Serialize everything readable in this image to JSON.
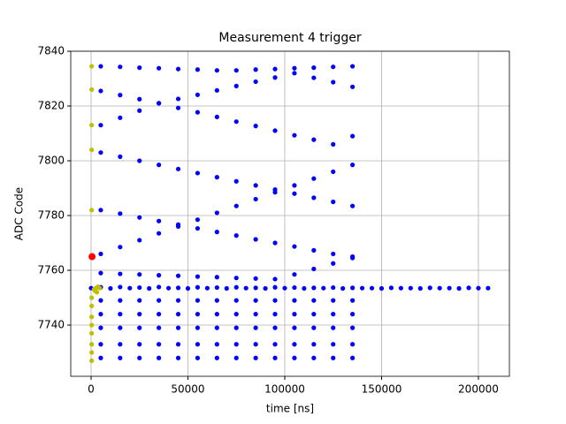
{
  "chart_data": {
    "type": "scatter",
    "title": "Measurement 4 trigger",
    "x_label": "time [ns]",
    "y_label": "ADC Code",
    "xlim": [
      -10500,
      216000
    ],
    "ylim": [
      7721.3,
      7840
    ],
    "xticks": [
      0,
      50000,
      100000,
      150000,
      200000
    ],
    "yticks": [
      7740,
      7760,
      7780,
      7800,
      7820,
      7840
    ],
    "grid": true,
    "series": [
      {
        "color": "#0000ff",
        "size": 2.6,
        "x": [
          0,
          5000,
          10000,
          15000,
          20000,
          25000,
          30000,
          35000,
          40000,
          45000,
          50000,
          55000,
          60000,
          65000,
          70000,
          75000,
          80000,
          85000,
          90000,
          95000,
          100000,
          105000,
          110000,
          115000,
          120000,
          125000,
          130000,
          135000,
          140000,
          145000,
          150000,
          155000,
          160000,
          165000,
          170000,
          175000,
          180000,
          185000,
          190000,
          195000,
          200000,
          205000
        ],
        "y": [
          7753.5,
          7753.8,
          7753.4,
          7753.9,
          7753.5,
          7753.7,
          7753.4,
          7753.9,
          7753.5,
          7753.6,
          7753.4,
          7753.8,
          7753.5,
          7753.7,
          7753.4,
          7753.8,
          7753.5,
          7753.6,
          7753.4,
          7753.8,
          7753.5,
          7753.7,
          7753.4,
          7753.6,
          7753.5,
          7753.7,
          7753.4,
          7753.6,
          7753.5,
          7753.5,
          7753.4,
          7753.6,
          7753.5,
          7753.5,
          7753.4,
          7753.6,
          7753.5,
          7753.5,
          7753.4,
          7753.6,
          7753.5,
          7753.5
        ]
      },
      {
        "color": "#0000ff",
        "size": 2.6,
        "x": [
          5000,
          15000,
          25000,
          35000,
          45000,
          55000,
          65000,
          75000,
          85000,
          95000,
          105000,
          115000,
          125000,
          135000
        ],
        "y": [
          7834.5,
          7834.3,
          7834,
          7833.8,
          7833.5,
          7833.3,
          7833,
          7833,
          7833.3,
          7833.5,
          7833.8,
          7834,
          7834.3,
          7834.5
        ]
      },
      {
        "color": "#0000ff",
        "size": 2.6,
        "x": [
          5000,
          15000,
          25000,
          35000,
          45000,
          55000,
          65000,
          75000,
          85000,
          95000,
          105000,
          115000,
          125000,
          135000
        ],
        "y": [
          7825.5,
          7824,
          7822.5,
          7821,
          7822.6,
          7824.1,
          7825.7,
          7827.3,
          7828.9,
          7830.4,
          7832,
          7830.3,
          7828.7,
          7827
        ]
      },
      {
        "color": "#0000ff",
        "size": 2.6,
        "x": [
          5000,
          15000,
          25000,
          35000,
          45000,
          55000,
          65000,
          75000,
          85000,
          95000,
          105000,
          115000,
          125000,
          135000
        ],
        "y": [
          7813,
          7815.7,
          7818.3,
          7821,
          7819.3,
          7817.7,
          7816,
          7814.3,
          7812.7,
          7811,
          7809.3,
          7807.7,
          7806,
          7809
        ]
      },
      {
        "color": "#0000ff",
        "size": 2.6,
        "x": [
          5000,
          15000,
          25000,
          35000,
          45000,
          55000,
          65000,
          75000,
          85000,
          95000,
          105000,
          115000,
          125000,
          135000
        ],
        "y": [
          7803,
          7801.5,
          7800,
          7798.5,
          7797,
          7795.5,
          7794,
          7792.5,
          7791,
          7789.5,
          7788,
          7786.5,
          7785,
          7783.5
        ]
      },
      {
        "color": "#0000ff",
        "size": 2.6,
        "x": [
          5000,
          15000,
          25000,
          35000,
          45000,
          55000,
          65000,
          75000,
          85000,
          95000,
          105000,
          115000,
          125000,
          135000
        ],
        "y": [
          7782,
          7780.7,
          7779.3,
          7778,
          7776.7,
          7775.3,
          7774,
          7772.7,
          7771.3,
          7770,
          7768.7,
          7767.3,
          7766,
          7765
        ]
      },
      {
        "color": "#0000ff",
        "size": 2.6,
        "x": [
          5000,
          15000,
          25000,
          35000,
          45000,
          55000,
          65000,
          75000,
          85000,
          95000,
          105000,
          115000,
          125000,
          135000
        ],
        "y": [
          7766,
          7768.5,
          7771,
          7773.5,
          7776,
          7778.5,
          7781,
          7783.5,
          7786,
          7788.5,
          7791,
          7793.5,
          7796,
          7798.5
        ]
      },
      {
        "color": "#0000ff",
        "size": 2.6,
        "x": [
          5000,
          15000,
          25000,
          35000,
          45000,
          55000,
          65000,
          75000,
          85000,
          95000,
          105000,
          115000,
          125000,
          135000
        ],
        "y": [
          7759,
          7758.7,
          7758.5,
          7758.2,
          7758,
          7757.7,
          7757.5,
          7757.2,
          7757,
          7756.8,
          7758.5,
          7760.5,
          7762.5,
          7764.5
        ]
      },
      {
        "color": "#0000ff",
        "size": 2.6,
        "x": [
          5000,
          15000,
          25000,
          35000,
          45000,
          55000,
          65000,
          75000,
          85000,
          95000,
          105000,
          115000,
          125000,
          135000
        ],
        "y": [
          7749,
          7749,
          7749,
          7749,
          7749,
          7749,
          7749,
          7749,
          7749,
          7749,
          7749,
          7749,
          7749,
          7749
        ]
      },
      {
        "color": "#0000ff",
        "size": 2.6,
        "x": [
          5000,
          15000,
          25000,
          35000,
          45000,
          55000,
          65000,
          75000,
          85000,
          95000,
          105000,
          115000,
          125000,
          135000
        ],
        "y": [
          7744,
          7744,
          7744,
          7744,
          7744,
          7744,
          7744,
          7744,
          7744,
          7744,
          7744,
          7744,
          7744,
          7744
        ]
      },
      {
        "color": "#0000ff",
        "size": 2.6,
        "x": [
          5000,
          15000,
          25000,
          35000,
          45000,
          55000,
          65000,
          75000,
          85000,
          95000,
          105000,
          115000,
          125000,
          135000
        ],
        "y": [
          7739,
          7739,
          7739,
          7739,
          7739,
          7739,
          7739,
          7739,
          7739,
          7739,
          7739,
          7739,
          7739,
          7739
        ]
      },
      {
        "color": "#0000ff",
        "size": 2.6,
        "x": [
          5000,
          15000,
          25000,
          35000,
          45000,
          55000,
          65000,
          75000,
          85000,
          95000,
          105000,
          115000,
          125000,
          135000
        ],
        "y": [
          7733,
          7733,
          7733,
          7733,
          7733,
          7733,
          7733,
          7733,
          7733,
          7733,
          7733,
          7733,
          7733,
          7733
        ]
      },
      {
        "color": "#0000ff",
        "size": 2.6,
        "x": [
          5000,
          15000,
          25000,
          35000,
          45000,
          55000,
          65000,
          75000,
          85000,
          95000,
          105000,
          115000,
          125000,
          135000
        ],
        "y": [
          7728,
          7728,
          7728,
          7728,
          7728,
          7728,
          7728,
          7728,
          7728,
          7728,
          7728,
          7728,
          7728,
          7728
        ]
      },
      {
        "color": "#bfbf00",
        "size": 2.6,
        "x": [
          300,
          300,
          300,
          300,
          300,
          300,
          300,
          300,
          300,
          300,
          300,
          300,
          300,
          1500,
          2500,
          3500,
          4500,
          2000,
          3000
        ],
        "y": [
          7834.5,
          7826,
          7813,
          7804,
          7782,
          7750,
          7747,
          7743,
          7740,
          7737,
          7733,
          7730,
          7727,
          7753,
          7753.5,
          7754,
          7753.5,
          7752.5,
          7752
        ]
      },
      {
        "color": "#ff0000",
        "size": 4,
        "x": [
          500
        ],
        "y": [
          7765
        ]
      }
    ]
  }
}
